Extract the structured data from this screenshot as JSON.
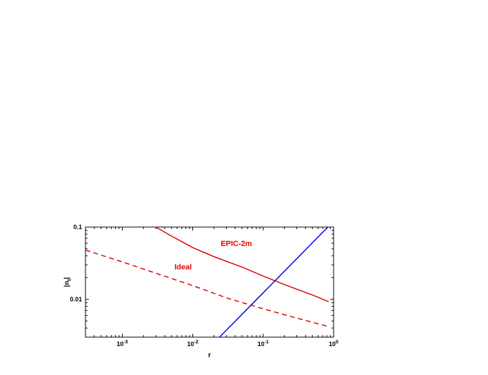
{
  "chart_data": {
    "type": "line",
    "title": "",
    "xlabel": "r",
    "ylabel_base": "|n",
    "ylabel_sub": "t",
    "ylabel_end": "|",
    "x_scale": "log",
    "y_scale": "log",
    "xlim": [
      0.0003,
      1.0
    ],
    "ylim": [
      0.003,
      0.1
    ],
    "x_ticks": [
      {
        "value": 0.001,
        "base": "10",
        "exp": "-3"
      },
      {
        "value": 0.01,
        "base": "10",
        "exp": "-2"
      },
      {
        "value": 0.1,
        "base": "10",
        "exp": "-1"
      },
      {
        "value": 1.0,
        "base": "10",
        "exp": "0"
      }
    ],
    "y_ticks": [
      {
        "value": 0.01,
        "label": "0.01"
      },
      {
        "value": 0.1,
        "label": "0.1"
      }
    ],
    "grid": false,
    "series": [
      {
        "style": "solid",
        "color": "#e00000",
        "x": [
          0.003,
          0.005,
          0.01,
          0.02,
          0.05,
          0.1,
          0.2,
          0.5,
          0.85
        ],
        "y": [
          0.1,
          0.075,
          0.052,
          0.039,
          0.028,
          0.021,
          0.016,
          0.0115,
          0.0093
        ]
      },
      {
        "style": "dashed",
        "color": "#e00000",
        "x": [
          0.0003,
          0.001,
          0.003,
          0.01,
          0.03,
          0.1,
          0.3,
          0.85
        ],
        "y": [
          0.048,
          0.033,
          0.023,
          0.0155,
          0.0105,
          0.0074,
          0.0055,
          0.0042
        ]
      },
      {
        "style": "solid",
        "color": "#0000e0",
        "x": [
          0.024,
          0.83
        ],
        "y": [
          0.003,
          0.1
        ]
      }
    ],
    "annotations": [
      {
        "text": "EPIC-2m",
        "x": 0.025,
        "y": 0.055,
        "color": "#e00000"
      },
      {
        "text": "Ideal",
        "x": 0.0055,
        "y": 0.026,
        "color": "#e00000"
      }
    ]
  }
}
